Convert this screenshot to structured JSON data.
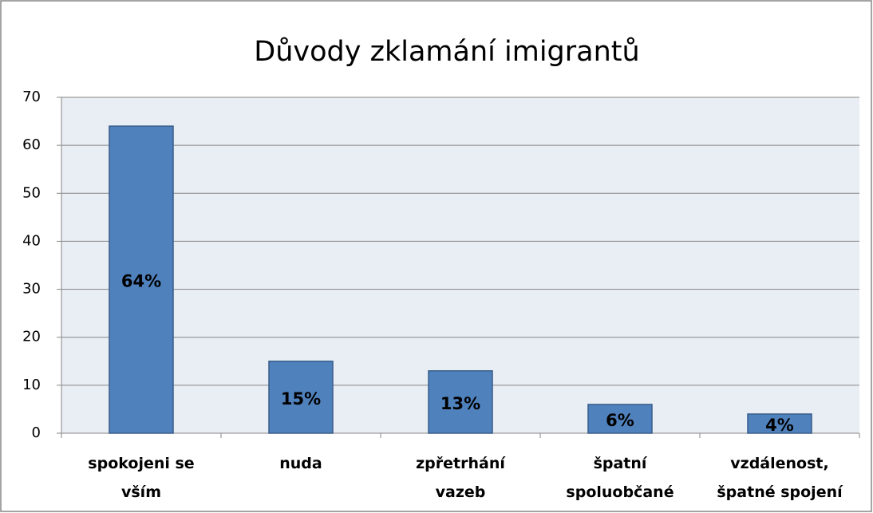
{
  "chart_data": {
    "type": "bar",
    "title": "Důvody zklamání imigrantů",
    "categories": [
      "spokojeni se\nvším",
      "nuda",
      "zpřetrhání\nvazeb",
      "špatní\nspoluobčané",
      "vzdálenost,\nšpatné spojení"
    ],
    "values": [
      64,
      15,
      13,
      6,
      4
    ],
    "value_labels": [
      "64%",
      "15%",
      "13%",
      "6%",
      "4%"
    ],
    "color": "#4f81bd",
    "ylim": [
      0,
      70
    ],
    "yticks": [
      0,
      10,
      20,
      30,
      40,
      50,
      60,
      70
    ],
    "grid": true
  }
}
